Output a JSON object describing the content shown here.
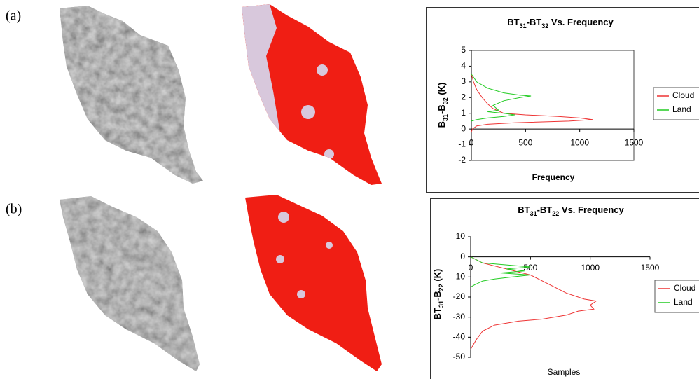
{
  "panels": [
    "(a)",
    "(b)"
  ],
  "chart_data": [
    {
      "type": "line",
      "title": [
        "BT",
        "31",
        "-BT",
        "32",
        "  Vs. Frequency"
      ],
      "ylabel": [
        "B",
        "31",
        "-B",
        "32",
        " (K)"
      ],
      "xlabel": "Frequency",
      "xlim": [
        0,
        1500
      ],
      "xticks": [
        0,
        500,
        1000,
        1500
      ],
      "ylim": [
        -2,
        5
      ],
      "yticks": [
        -2,
        -1,
        0,
        1,
        2,
        3,
        4,
        5
      ],
      "plot_border": true,
      "series": [
        {
          "name": "Cloud",
          "color": "#ee3333",
          "x": [
            0,
            20,
            50,
            100,
            150,
            200,
            300,
            500,
            800,
            1000,
            1120,
            900,
            400,
            150,
            50,
            10,
            0
          ],
          "y": [
            3.5,
            3,
            2.5,
            2,
            1.6,
            1.3,
            1,
            0.9,
            0.8,
            0.7,
            0.6,
            0.5,
            0.4,
            0.3,
            0.2,
            0,
            -0.2
          ]
        },
        {
          "name": "Land",
          "color": "#22cc22",
          "x": [
            0,
            50,
            150,
            300,
            450,
            550,
            450,
            300,
            200,
            250,
            150,
            300,
            400,
            300,
            150,
            50,
            0
          ],
          "y": [
            3.5,
            3,
            2.6,
            2.3,
            2.15,
            2.1,
            2,
            1.8,
            1.5,
            1.2,
            1.1,
            1,
            0.9,
            0.8,
            0.7,
            0.6,
            0.5
          ]
        }
      ]
    },
    {
      "type": "line",
      "title": [
        "BT",
        "31",
        "-BT",
        "22",
        "  Vs. Frequency"
      ],
      "ylabel": [
        "BT",
        "31",
        "-B",
        "22",
        " (K)"
      ],
      "xlabel": "Samples",
      "xlim": [
        0,
        1500
      ],
      "xticks": [
        0,
        500,
        1000,
        1500
      ],
      "ylim": [
        -50,
        10
      ],
      "yticks": [
        -50,
        -40,
        -30,
        -20,
        -10,
        0,
        10
      ],
      "plot_border": false,
      "series": [
        {
          "name": "Cloud",
          "color": "#ee3333",
          "x": [
            0,
            100,
            300,
            500,
            600,
            700,
            800,
            950,
            1050,
            1000,
            1030,
            900,
            800,
            600,
            400,
            200,
            100,
            50,
            20,
            0
          ],
          "y": [
            0,
            -3,
            -6,
            -9,
            -12,
            -15,
            -18,
            -21,
            -22,
            -24,
            -26,
            -27,
            -29,
            -31,
            -32,
            -34,
            -37,
            -41,
            -44,
            -46
          ]
        },
        {
          "name": "Land",
          "color": "#22cc22",
          "x": [
            0,
            100,
            300,
            500,
            300,
            450,
            250,
            500,
            350,
            200,
            100,
            30,
            0
          ],
          "y": [
            0,
            -3,
            -4,
            -5,
            -6,
            -7,
            -8,
            -9,
            -10,
            -11,
            -12,
            -14,
            -15
          ]
        }
      ]
    }
  ]
}
